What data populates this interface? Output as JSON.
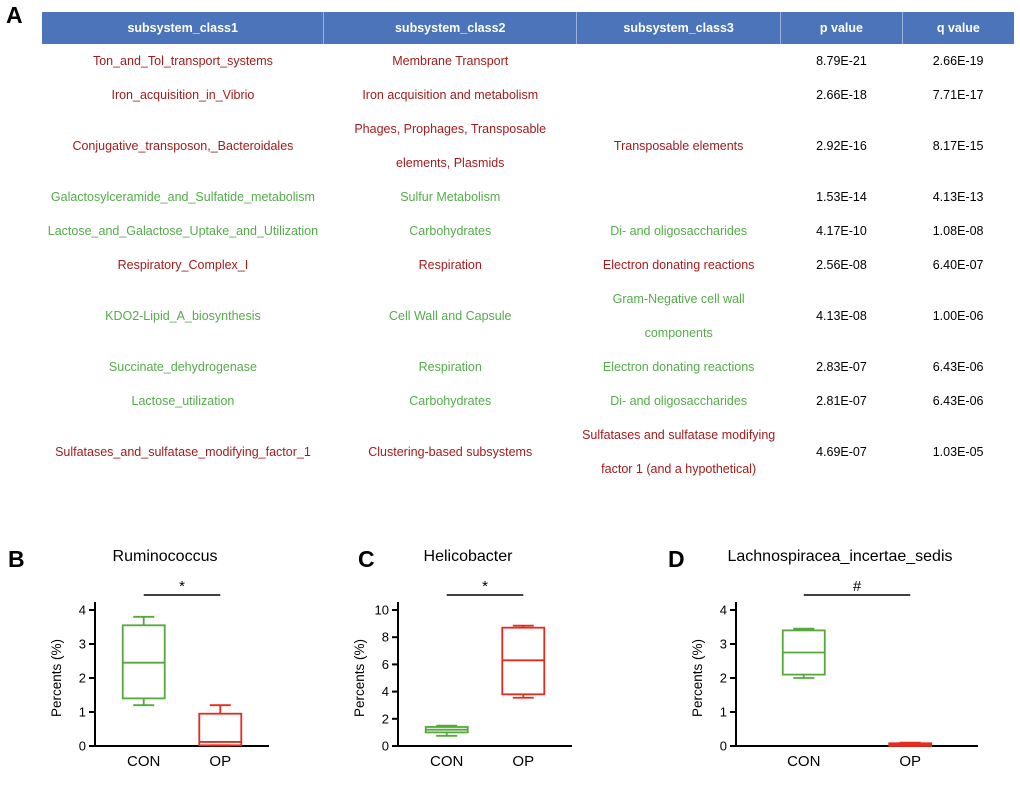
{
  "panels": {
    "a": "A",
    "b": "B",
    "c": "C",
    "d": "D"
  },
  "colors": {
    "header_bg": "#4b74ba",
    "header_text": "#ffffff",
    "red": "#a21c1c",
    "green": "#55ab4a",
    "box_green": "#56a73c",
    "box_red": "#e52a1e"
  },
  "table": {
    "columns": [
      "subsystem_class1",
      "subsystem_class2",
      "subsystem_class3",
      "p value",
      "q value"
    ],
    "rows": [
      {
        "cells": [
          "Ton_and_Tol_transport_systems",
          "Membrane Transport",
          "",
          "8.79E-21",
          "2.66E-19"
        ],
        "color": "red"
      },
      {
        "cells": [
          "Iron_acquisition_in_Vibrio",
          "Iron acquisition and metabolism",
          "",
          "2.66E-18",
          "7.71E-17"
        ],
        "color": "red"
      },
      {
        "cells": [
          "Conjugative_transposon,_Bacteroidales",
          "Phages, Prophages, Transposable elements, Plasmids",
          "Transposable elements",
          "2.92E-16",
          "8.17E-15"
        ],
        "color": "red"
      },
      {
        "cells": [
          "Galactosylceramide_and_Sulfatide_metabolism",
          "Sulfur Metabolism",
          "",
          "1.53E-14",
          "4.13E-13"
        ],
        "color": "green"
      },
      {
        "cells": [
          "Lactose_and_Galactose_Uptake_and_Utilization",
          "Carbohydrates",
          "Di- and oligosaccharides",
          "4.17E-10",
          "1.08E-08"
        ],
        "color": "green"
      },
      {
        "cells": [
          "Respiratory_Complex_I",
          "Respiration",
          "Electron donating reactions",
          "2.56E-08",
          "6.40E-07"
        ],
        "color": "red"
      },
      {
        "cells": [
          "KDO2-Lipid_A_biosynthesis",
          "Cell Wall and Capsule",
          "Gram-Negative cell wall components",
          "4.13E-08",
          "1.00E-06"
        ],
        "color": "green"
      },
      {
        "cells": [
          "Succinate_dehydrogenase",
          "Respiration",
          "Electron donating reactions",
          "2.83E-07",
          "6.43E-06"
        ],
        "color": "green"
      },
      {
        "cells": [
          "Lactose_utilization",
          "Carbohydrates",
          "Di- and oligosaccharides",
          "2.81E-07",
          "6.43E-06"
        ],
        "color": "green"
      },
      {
        "cells": [
          "Sulfatases_and_sulfatase_modifying_factor_1",
          "Clustering-based subsystems",
          "Sulfatases and sulfatase modifying factor 1 (and a hypothetical)",
          "4.69E-07",
          "1.03E-05"
        ],
        "color": "red"
      }
    ]
  },
  "chart_data": [
    {
      "type": "box",
      "panel": "B",
      "title": "Ruminococcus",
      "ylabel": "Percents (%)",
      "ylim": [
        0,
        4
      ],
      "yticks": [
        0,
        1,
        2,
        3,
        4
      ],
      "significance": "*",
      "categories": [
        "CON",
        "OP"
      ],
      "groups": [
        {
          "label": "CON",
          "color": "green",
          "whisker_low": 1.2,
          "q1": 1.4,
          "median": 2.45,
          "q3": 3.55,
          "whisker_high": 3.8
        },
        {
          "label": "OP",
          "color": "red",
          "whisker_low": 0.02,
          "q1": 0.02,
          "median": 0.12,
          "q3": 0.95,
          "whisker_high": 1.2
        }
      ]
    },
    {
      "type": "box",
      "panel": "C",
      "title": "Helicobacter",
      "ylabel": "Percents (%)",
      "ylim": [
        0,
        10
      ],
      "yticks": [
        0,
        2,
        4,
        6,
        8,
        10
      ],
      "significance": "*",
      "categories": [
        "CON",
        "OP"
      ],
      "groups": [
        {
          "label": "CON",
          "color": "green",
          "whisker_low": 0.75,
          "q1": 1.0,
          "median": 1.2,
          "q3": 1.4,
          "whisker_high": 1.5
        },
        {
          "label": "OP",
          "color": "red",
          "whisker_low": 3.55,
          "q1": 3.8,
          "median": 6.3,
          "q3": 8.7,
          "whisker_high": 8.85
        }
      ]
    },
    {
      "type": "box",
      "panel": "D",
      "title": "Lachnospiracea_incertae_sedis",
      "ylabel": "Percents (%)",
      "ylim": [
        0,
        4
      ],
      "yticks": [
        0,
        1,
        2,
        3,
        4
      ],
      "significance": "#",
      "categories": [
        "CON",
        "OP"
      ],
      "groups": [
        {
          "label": "CON",
          "color": "green",
          "whisker_low": 2.0,
          "q1": 2.1,
          "median": 2.75,
          "q3": 3.4,
          "whisker_high": 3.45
        },
        {
          "label": "OP",
          "color": "red",
          "whisker_low": 0.0,
          "q1": 0.0,
          "median": 0.04,
          "q3": 0.08,
          "whisker_high": 0.1
        }
      ]
    }
  ]
}
